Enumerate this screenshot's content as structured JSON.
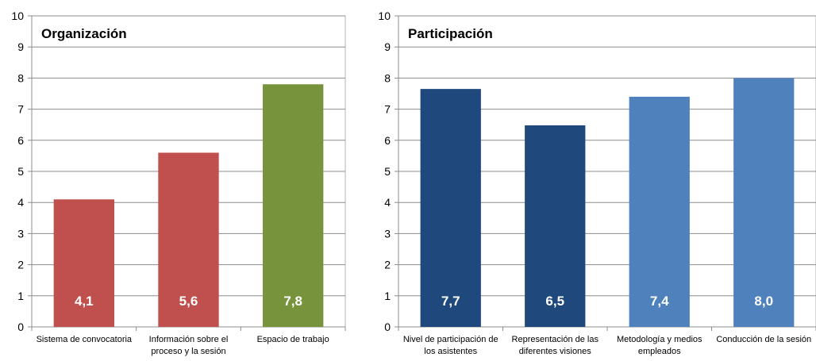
{
  "chart_data": [
    {
      "type": "bar",
      "title": "Organización",
      "categories": [
        [
          "Sistema de convocatoria"
        ],
        [
          "Información sobre el",
          "proceso y la sesión"
        ],
        [
          "Espacio de trabajo"
        ]
      ],
      "values": [
        4.1,
        5.6,
        7.8
      ],
      "data_labels": [
        "4,1",
        "5,6",
        "7,8"
      ],
      "colors": [
        "#C0504D",
        "#C0504D",
        "#77933C"
      ],
      "ylim": [
        0,
        10
      ],
      "yticks": [
        0,
        1,
        2,
        3,
        4,
        5,
        6,
        7,
        8,
        9,
        10
      ],
      "grid": true,
      "xlabel": "",
      "ylabel": ""
    },
    {
      "type": "bar",
      "title": "Participación",
      "categories": [
        [
          "Nivel de participación de",
          "los asistentes"
        ],
        [
          "Representación de las",
          "diferentes visiones"
        ],
        [
          "Metodología y medios",
          "empleados"
        ],
        [
          "Conducción de la sesión"
        ]
      ],
      "values": [
        7.65,
        6.48,
        7.4,
        8.0
      ],
      "data_labels": [
        "7,7",
        "6,5",
        "7,4",
        "8,0"
      ],
      "colors": [
        "#1F497D",
        "#1F497D",
        "#4F81BD",
        "#4F81BD"
      ],
      "ylim": [
        0,
        10
      ],
      "yticks": [
        0,
        1,
        2,
        3,
        4,
        5,
        6,
        7,
        8,
        9,
        10
      ],
      "grid": true,
      "xlabel": "",
      "ylabel": ""
    }
  ]
}
